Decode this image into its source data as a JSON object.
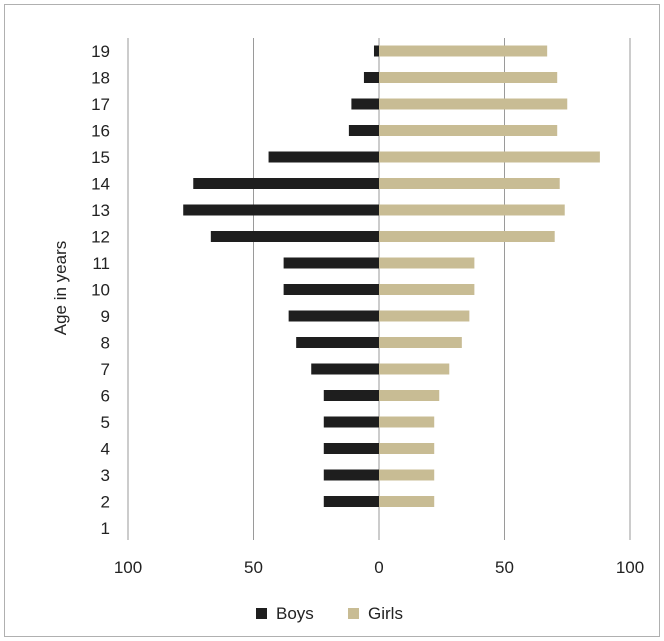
{
  "chart_data": {
    "type": "bar",
    "orientation": "horizontal",
    "layout": "population-pyramid",
    "ylabel": "Age in years",
    "xlabel": "",
    "categories": [
      "1",
      "2",
      "3",
      "4",
      "5",
      "6",
      "7",
      "8",
      "9",
      "10",
      "11",
      "12",
      "13",
      "14",
      "15",
      "16",
      "17",
      "18",
      "19"
    ],
    "series": [
      {
        "name": "Boys",
        "color": "#1e1e1e",
        "side": "left",
        "values": [
          0,
          22,
          22,
          22,
          22,
          22,
          27,
          33,
          36,
          38,
          38,
          67,
          78,
          74,
          44,
          12,
          11,
          6,
          2
        ]
      },
      {
        "name": "Girls",
        "color": "#c8bc94",
        "side": "right",
        "values": [
          0,
          22,
          22,
          22,
          22,
          24,
          28,
          33,
          36,
          38,
          38,
          70,
          74,
          72,
          88,
          71,
          75,
          71,
          67
        ]
      }
    ],
    "xlim": [
      -100,
      100
    ],
    "x_tick_values": [
      -100,
      -50,
      0,
      50,
      100
    ],
    "x_tick_labels": [
      "100",
      "50",
      "0",
      "50",
      "100"
    ],
    "grid": "vertical",
    "legend": "bottom-center"
  }
}
